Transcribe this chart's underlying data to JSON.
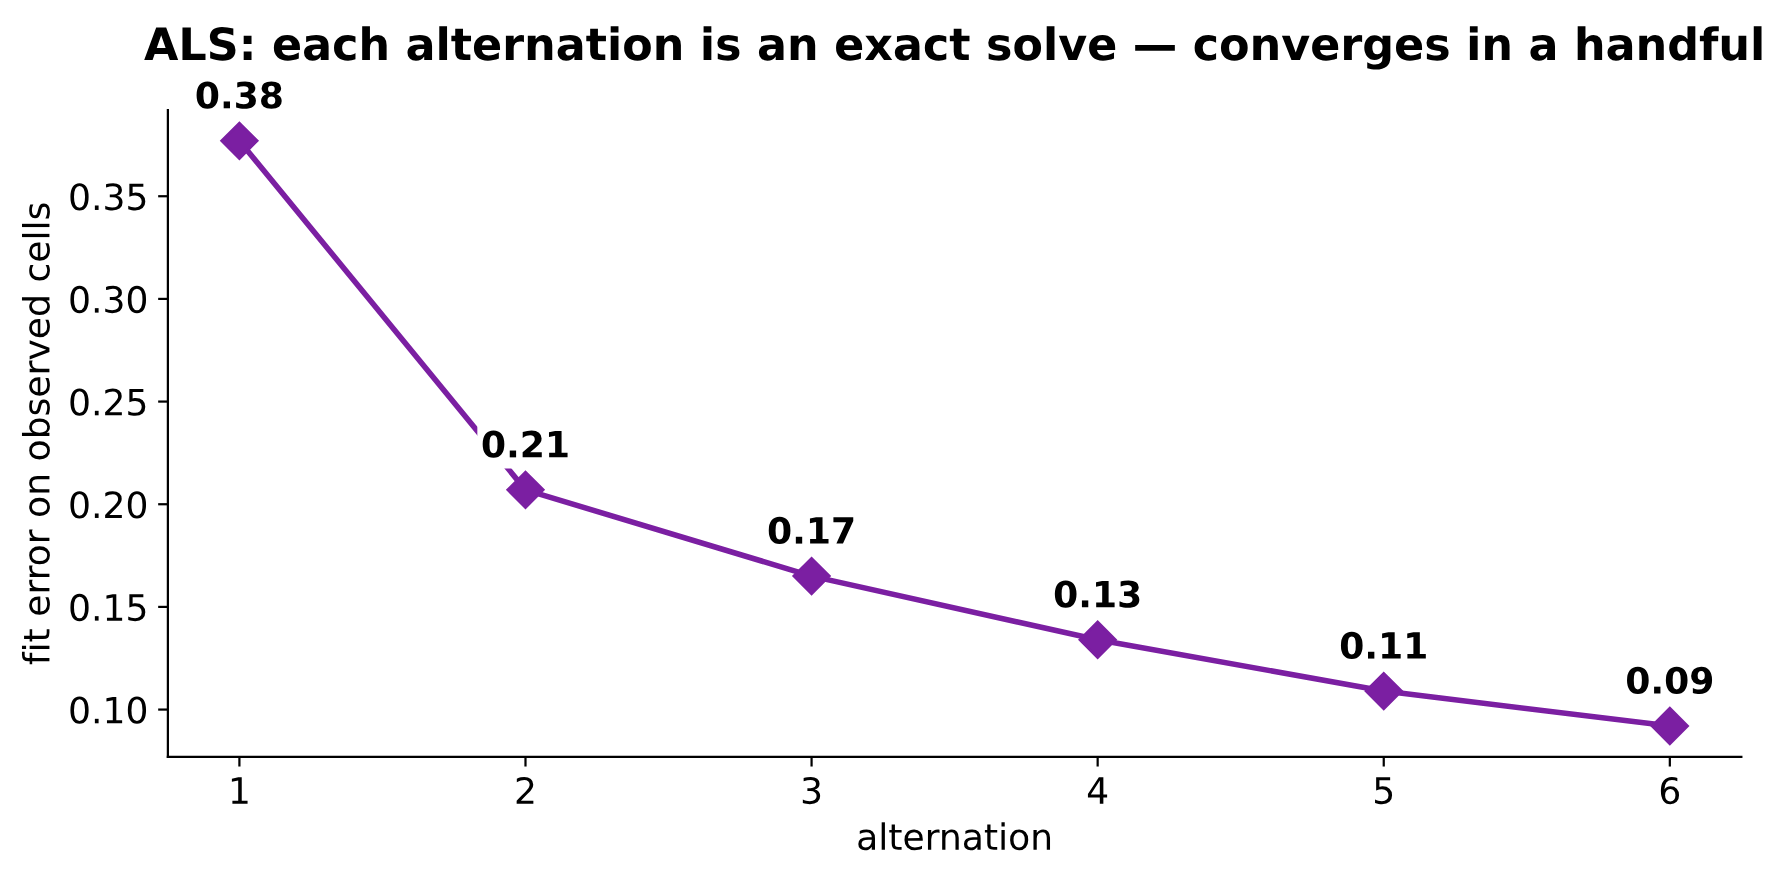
{
  "chart_data": {
    "type": "line",
    "title": "ALS: each alternation is an exact solve — converges in a handful",
    "xlabel": "alternation",
    "ylabel": "fit error on observed cells",
    "x": [
      1,
      2,
      3,
      4,
      5,
      6
    ],
    "series": [
      {
        "color": "#7b1fa2",
        "values": [
          0.377,
          0.207,
          0.165,
          0.134,
          0.109,
          0.092
        ],
        "value_labels": [
          "0.38",
          "0.21",
          "0.17",
          "0.13",
          "0.11",
          "0.09"
        ]
      }
    ],
    "xlim": [
      0.75,
      6.25
    ],
    "xticks": [
      1,
      2,
      3,
      4,
      5,
      6
    ],
    "ylim": [
      0.077,
      0.392
    ],
    "yticks": [
      {
        "value": 0.1,
        "label": "0.10"
      },
      0.15,
      {
        "value": 0.2,
        "label": "0.20"
      },
      0.25,
      {
        "value": 0.3,
        "label": "0.30"
      },
      0.35
    ],
    "marker": "diamond",
    "line_style": "solid",
    "grid": false,
    "legend": false
  }
}
